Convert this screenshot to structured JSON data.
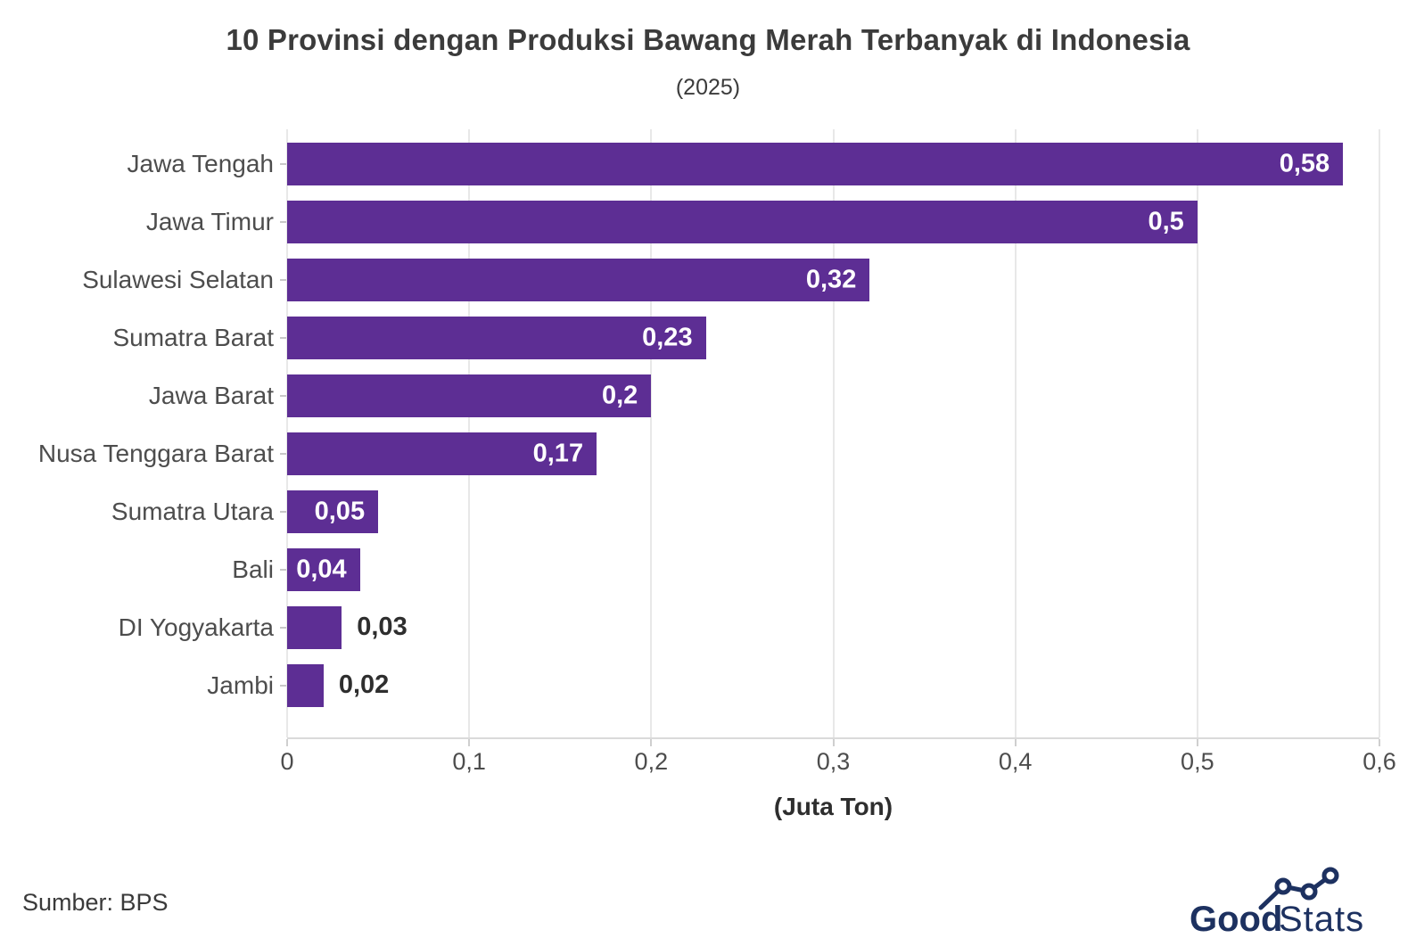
{
  "header": {
    "title": "10 Provinsi dengan Produksi Bawang Merah Terbanyak di Indonesia",
    "subtitle": "(2025)"
  },
  "chart_data": {
    "type": "bar",
    "orientation": "horizontal",
    "title": "10 Provinsi dengan Produksi Bawang Merah Terbanyak di Indonesia",
    "subtitle": "(2025)",
    "categories": [
      "Jawa Tengah",
      "Jawa Timur",
      "Sulawesi Selatan",
      "Sumatra Barat",
      "Jawa Barat",
      "Nusa Tenggara Barat",
      "Sumatra Utara",
      "Bali",
      "DI Yogyakarta",
      "Jambi"
    ],
    "values": [
      0.58,
      0.5,
      0.32,
      0.23,
      0.2,
      0.17,
      0.05,
      0.04,
      0.03,
      0.02
    ],
    "value_labels": [
      "0,58",
      "0,5",
      "0,32",
      "0,23",
      "0,2",
      "0,17",
      "0,05",
      "0,04",
      "0,03",
      "0,02"
    ],
    "label_inside": [
      true,
      true,
      true,
      true,
      true,
      true,
      true,
      true,
      false,
      false
    ],
    "xlabel": "(Juta Ton)",
    "ylabel": "",
    "xlim": [
      0,
      0.6
    ],
    "x_ticks": [
      0,
      0.1,
      0.2,
      0.3,
      0.4,
      0.5,
      0.6
    ],
    "x_tick_labels": [
      "0",
      "0,1",
      "0,2",
      "0,3",
      "0,4",
      "0,5",
      "0,6"
    ],
    "grid": true,
    "legend": false,
    "bar_color": "#5d2e94"
  },
  "colors": {
    "bar": "#5d2e94",
    "title_text": "#3b3b3b",
    "axis_text": "#4d4d4d",
    "gridline": "#e8e8e8",
    "logo_navy": "#1d3160"
  },
  "footer": {
    "source": "Sumber: BPS",
    "logo_bold": "Good",
    "logo_light": "Stats"
  }
}
